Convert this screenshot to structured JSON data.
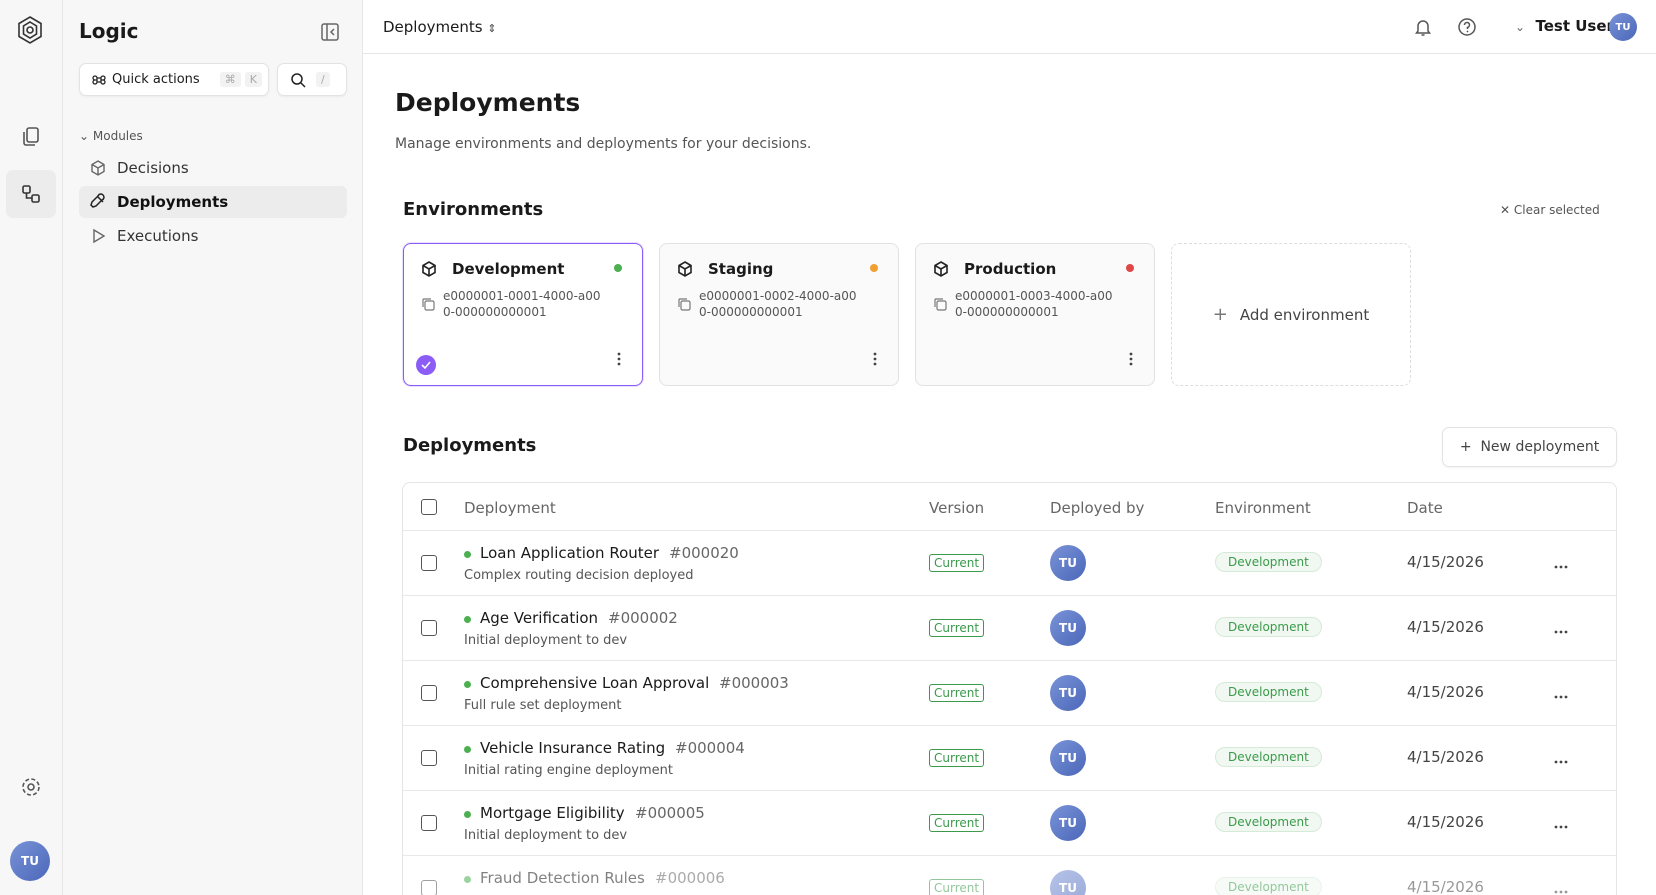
{
  "app": {
    "name": "Logic",
    "quick_actions": "Quick actions",
    "quick_key": "K",
    "search_key": "/"
  },
  "nav": {
    "section": "Modules",
    "items": [
      "Decisions",
      "Deployments",
      "Executions"
    ],
    "active": 1
  },
  "topbar": {
    "breadcrumb": "Deployments",
    "user": "Test User",
    "user_initials": "TU"
  },
  "page": {
    "title": "Deployments",
    "subtitle": "Manage environments and deployments for your decisions."
  },
  "environments": {
    "title": "Environments",
    "clear": "Clear selected",
    "add": "Add environment",
    "selected": 0,
    "cards": [
      {
        "name": "Development",
        "id": "e0000001-0001-4000-a000-000000000001",
        "color": "#4caf50"
      },
      {
        "name": "Staging",
        "id": "e0000001-0002-4000-a000-000000000001",
        "color": "#f0a030"
      },
      {
        "name": "Production",
        "id": "e0000001-0003-4000-a000-000000000001",
        "color": "#e04848"
      }
    ]
  },
  "deployments": {
    "title": "Deployments",
    "new": "New deployment",
    "columns": [
      "Deployment",
      "Version",
      "Deployed by",
      "Environment",
      "Date"
    ],
    "rows": [
      {
        "name": "Loan Application Router",
        "number": "#000020",
        "description": "Complex routing decision deployed",
        "version": "Current",
        "deployed_by": "TU",
        "environment": "Development",
        "date": "4/15/2026"
      },
      {
        "name": "Age Verification",
        "number": "#000002",
        "description": "Initial deployment to dev",
        "version": "Current",
        "deployed_by": "TU",
        "environment": "Development",
        "date": "4/15/2026"
      },
      {
        "name": "Comprehensive Loan Approval",
        "number": "#000003",
        "description": "Full rule set deployment",
        "version": "Current",
        "deployed_by": "TU",
        "environment": "Development",
        "date": "4/15/2026"
      },
      {
        "name": "Vehicle Insurance Rating",
        "number": "#000004",
        "description": "Initial rating engine deployment",
        "version": "Current",
        "deployed_by": "TU",
        "environment": "Development",
        "date": "4/15/2026"
      },
      {
        "name": "Mortgage Eligibility",
        "number": "#000005",
        "description": "Initial deployment to dev",
        "version": "Current",
        "deployed_by": "TU",
        "environment": "Development",
        "date": "4/15/2026"
      },
      {
        "name": "Fraud Detection Rules",
        "number": "#000006",
        "description": "",
        "version": "Current",
        "deployed_by": "TU",
        "environment": "Development",
        "date": "4/15/2026"
      }
    ]
  }
}
